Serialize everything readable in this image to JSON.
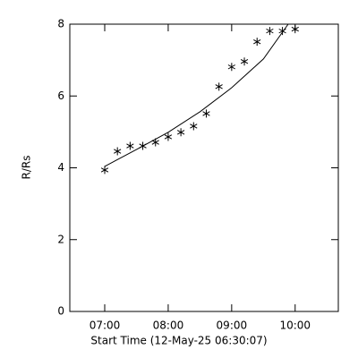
{
  "chart_data": {
    "type": "scatter",
    "xlabel": "Start Time (12-May-25 06:30:07)",
    "ylabel": "R/Rs",
    "xlim": [
      6.45,
      10.68
    ],
    "ylim": [
      0,
      8
    ],
    "xticks": [
      {
        "value": 7,
        "label": "07:00"
      },
      {
        "value": 8,
        "label": "08:00"
      },
      {
        "value": 9,
        "label": "09:00"
      },
      {
        "value": 10,
        "label": "10:00"
      }
    ],
    "yticks": [
      0,
      2,
      4,
      6,
      8
    ],
    "grid": false,
    "series": [
      {
        "style": "asterisk",
        "color": "#000000",
        "x": [
          7.0,
          7.2,
          7.4,
          7.6,
          7.8,
          8.0,
          8.2,
          8.4,
          8.6,
          8.8,
          9.0,
          9.2,
          9.4,
          9.6,
          9.8,
          10.0
        ],
        "values": [
          3.94,
          4.46,
          4.61,
          4.61,
          4.71,
          4.86,
          4.99,
          5.16,
          5.51,
          6.26,
          6.81,
          6.96,
          7.51,
          7.81,
          7.81,
          7.86
        ]
      },
      {
        "style": "line",
        "color": "#000000",
        "x": [
          7.0,
          7.5,
          8.0,
          8.5,
          9.0,
          9.5,
          9.89
        ],
        "values": [
          4.04,
          4.51,
          4.99,
          5.56,
          6.23,
          7.03,
          8.0
        ]
      }
    ]
  }
}
